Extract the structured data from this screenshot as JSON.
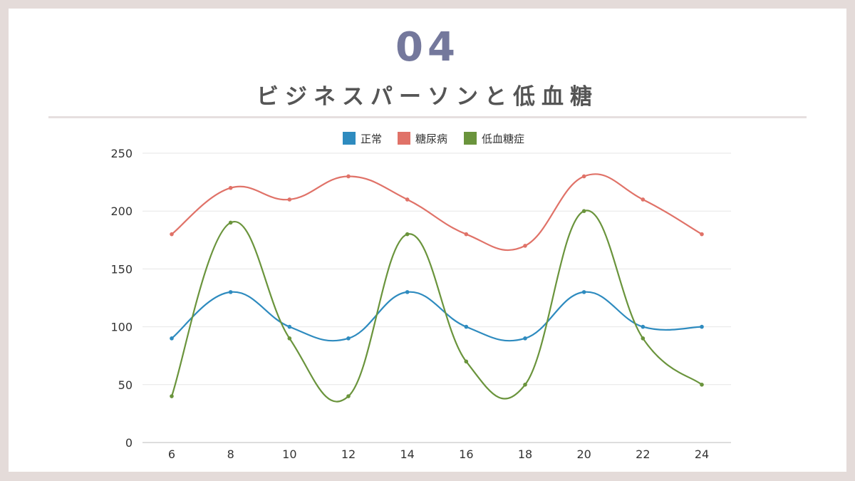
{
  "header": {
    "number": "04",
    "title": "ビジネスパーソンと低血糖"
  },
  "chart_data": {
    "type": "line",
    "title": "",
    "xlabel": "",
    "ylabel": "",
    "x": [
      6,
      8,
      10,
      12,
      14,
      16,
      18,
      20,
      22,
      24
    ],
    "ylim": [
      0,
      250
    ],
    "yticks": [
      0,
      50,
      100,
      150,
      200,
      250
    ],
    "grid": true,
    "legend": "top",
    "series": [
      {
        "name": "正常",
        "color": "#2e8bbf",
        "values": [
          90,
          130,
          100,
          90,
          130,
          100,
          90,
          130,
          100,
          100
        ]
      },
      {
        "name": "糖尿病",
        "color": "#e07268",
        "values": [
          180,
          220,
          210,
          230,
          210,
          180,
          170,
          230,
          210,
          180
        ]
      },
      {
        "name": "低血糖症",
        "color": "#6a943c",
        "values": [
          40,
          190,
          90,
          40,
          180,
          70,
          50,
          200,
          90,
          50
        ]
      }
    ]
  }
}
